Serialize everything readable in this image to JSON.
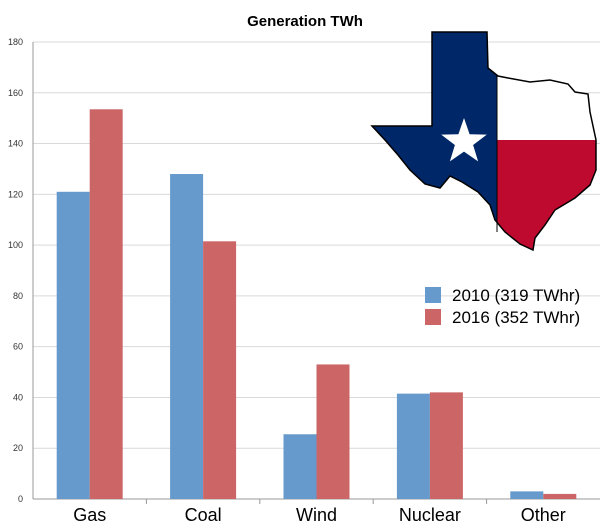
{
  "chart_data": {
    "type": "bar",
    "title": "Generation TWh",
    "xlabel": "",
    "ylabel": "",
    "categories": [
      "Gas",
      "Coal",
      "Wind",
      "Nuclear",
      "Other"
    ],
    "series": [
      {
        "name": "2010 (319 TWhr)",
        "values": [
          121,
          128,
          25.5,
          41.5,
          3
        ],
        "color": "#6699cc"
      },
      {
        "name": "2016 (352 TWhr)",
        "values": [
          153.5,
          101.5,
          53,
          42,
          2
        ],
        "color": "#cc6666"
      }
    ],
    "ylim": [
      0,
      180
    ],
    "yticks": [
      0,
      20,
      40,
      60,
      80,
      100,
      120,
      140,
      160,
      180
    ],
    "grid": true,
    "legend_position": "right"
  },
  "decoration": {
    "icon": "texas-flag-map",
    "colors": {
      "blue": "#002868",
      "red": "#bf0a30",
      "white": "#ffffff"
    }
  }
}
